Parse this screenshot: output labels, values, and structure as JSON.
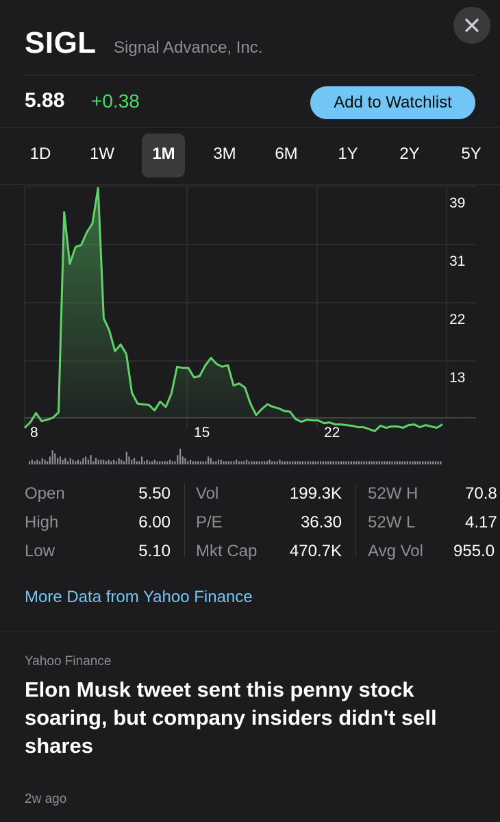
{
  "header": {
    "ticker": "SIGL",
    "company": "Signal Advance, Inc.",
    "close_icon": "close-icon"
  },
  "quote": {
    "price": "5.88",
    "change": "+0.38",
    "watchlist_label": "Add to Watchlist"
  },
  "tabs": [
    "1D",
    "1W",
    "1M",
    "3M",
    "6M",
    "1Y",
    "2Y",
    "5Y"
  ],
  "active_tab": "1M",
  "chart_data": {
    "type": "area",
    "y_ticks": [
      "39",
      "31",
      "22",
      "13"
    ],
    "x_ticks": [
      "8",
      "15",
      "22"
    ],
    "series": [
      {
        "color": "#5fd36a",
        "points": [
          [
            0,
            5.4
          ],
          [
            1,
            6.2
          ],
          [
            2,
            7.6
          ],
          [
            3,
            6.4
          ],
          [
            4,
            6.6
          ],
          [
            5,
            6.9
          ],
          [
            6,
            7.7
          ],
          [
            7,
            37.5
          ],
          [
            8,
            29.8
          ],
          [
            9,
            32.3
          ],
          [
            10,
            32.6
          ],
          [
            11,
            34.5
          ],
          [
            12,
            35.8
          ],
          [
            13,
            41.1
          ],
          [
            14,
            21.7
          ],
          [
            15,
            19.9
          ],
          [
            16,
            16.8
          ],
          [
            17,
            17.8
          ],
          [
            18,
            16.4
          ],
          [
            19,
            10.6
          ],
          [
            20,
            9.0
          ],
          [
            21,
            8.9
          ],
          [
            22,
            8.8
          ],
          [
            23,
            8.0
          ],
          [
            24,
            9.3
          ],
          [
            25,
            8.5
          ],
          [
            26,
            10.5
          ],
          [
            27,
            14.5
          ],
          [
            28,
            14.3
          ],
          [
            29,
            14.3
          ],
          [
            30,
            12.9
          ],
          [
            31,
            13.1
          ],
          [
            32,
            14.7
          ],
          [
            33,
            15.8
          ],
          [
            34,
            14.9
          ],
          [
            35,
            14.5
          ],
          [
            36,
            14.7
          ],
          [
            37,
            11.7
          ],
          [
            38,
            12.0
          ],
          [
            39,
            11.4
          ],
          [
            40,
            9.0
          ],
          [
            41,
            7.3
          ],
          [
            42,
            8.2
          ],
          [
            43,
            8.9
          ],
          [
            44,
            8.5
          ],
          [
            45,
            8.3
          ],
          [
            46,
            7.9
          ],
          [
            47,
            7.8
          ],
          [
            48,
            6.7
          ],
          [
            49,
            6.3
          ],
          [
            50,
            6.6
          ],
          [
            51,
            6.5
          ],
          [
            52,
            6.5
          ],
          [
            53,
            6.1
          ],
          [
            54,
            6.2
          ],
          [
            55,
            5.9
          ],
          [
            56,
            5.9
          ],
          [
            57,
            5.8
          ],
          [
            58,
            5.7
          ],
          [
            59,
            5.5
          ],
          [
            60,
            5.5
          ],
          [
            61,
            5.2
          ],
          [
            62,
            4.9
          ],
          [
            63,
            5.7
          ],
          [
            64,
            5.4
          ],
          [
            65,
            5.6
          ],
          [
            66,
            5.6
          ],
          [
            67,
            5.4
          ],
          [
            68,
            5.8
          ],
          [
            69,
            5.9
          ],
          [
            70,
            5.5
          ],
          [
            71,
            5.8
          ],
          [
            72,
            5.6
          ],
          [
            73,
            5.4
          ],
          [
            74,
            5.9
          ]
        ]
      }
    ],
    "volume": [
      2,
      3,
      2,
      3,
      2,
      4,
      3,
      2,
      5,
      9,
      7,
      4,
      5,
      3,
      4,
      2,
      4,
      3,
      2,
      3,
      2,
      4,
      5,
      3,
      6,
      2,
      4,
      3,
      3,
      3,
      2,
      3,
      2,
      3,
      2,
      4,
      3,
      2,
      8,
      5,
      3,
      4,
      2,
      2,
      5,
      2,
      3,
      2,
      2,
      3,
      2,
      2,
      2,
      2,
      2,
      3,
      2,
      2,
      6,
      10,
      5,
      4,
      2,
      3,
      2,
      2,
      2,
      2,
      2,
      2,
      5,
      4,
      2,
      2,
      3,
      3,
      2,
      2,
      2,
      2,
      2,
      3,
      2,
      2,
      2,
      3,
      2,
      2,
      2,
      2,
      2,
      2,
      2,
      2,
      3,
      2,
      2,
      2,
      3,
      2,
      2,
      2,
      2,
      2,
      2,
      2,
      2,
      2,
      2,
      2,
      2,
      2,
      2,
      2,
      2,
      2,
      2,
      2,
      2,
      2,
      2,
      2,
      2,
      2,
      2,
      2,
      2,
      2,
      2,
      2,
      2,
      2,
      2,
      2,
      2,
      2,
      2,
      2,
      2,
      2,
      2,
      2,
      2,
      2,
      2,
      2,
      2,
      2,
      2,
      2,
      2,
      2,
      2,
      2,
      2,
      2,
      2,
      2,
      2,
      2,
      2,
      2
    ]
  },
  "stats": {
    "col1": [
      {
        "label": "Open",
        "value": "5.50"
      },
      {
        "label": "High",
        "value": "6.00"
      },
      {
        "label": "Low",
        "value": "5.10"
      }
    ],
    "col2": [
      {
        "label": "Vol",
        "value": "199.3K"
      },
      {
        "label": "P/E",
        "value": "36.30"
      },
      {
        "label": "Mkt Cap",
        "value": "470.7K"
      }
    ],
    "col3": [
      {
        "label": "52W H",
        "value": "70.8"
      },
      {
        "label": "52W L",
        "value": "4.17"
      },
      {
        "label": "Avg Vol",
        "value": "955.0"
      }
    ]
  },
  "more_data_link": "More Data from Yahoo Finance",
  "news": {
    "source": "Yahoo Finance",
    "headline": "Elon Musk tweet sent this penny stock soaring, but company insiders didn't sell shares",
    "age": "2w ago"
  }
}
